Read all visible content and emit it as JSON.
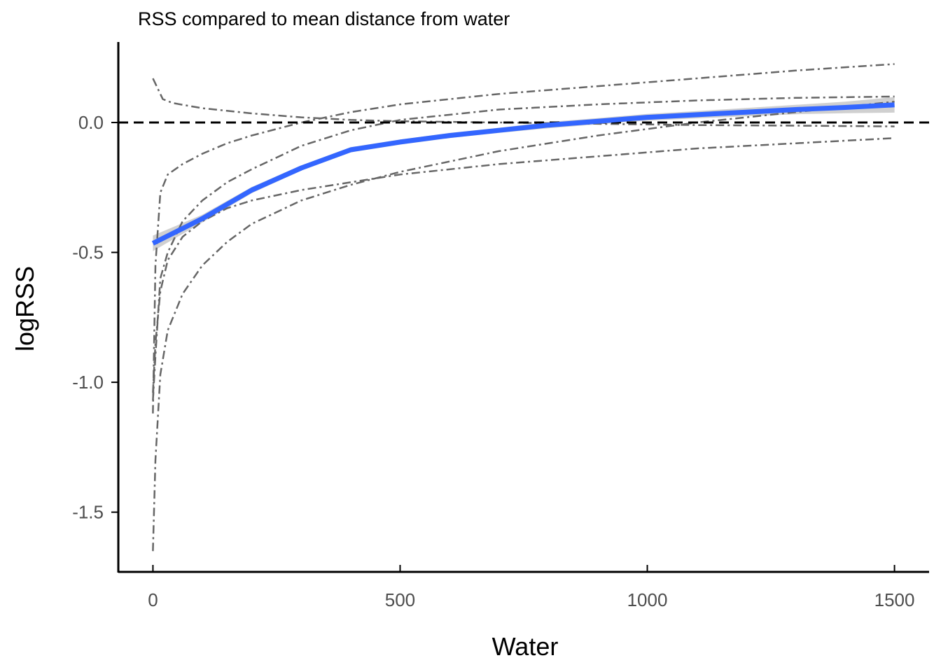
{
  "chart_data": {
    "type": "line",
    "title": "RSS compared to mean distance from water",
    "xlabel": "Water",
    "ylabel": "logRSS",
    "xlim": [
      -70,
      1570
    ],
    "ylim": [
      -1.73,
      0.31
    ],
    "x_ticks": [
      0,
      500,
      1000,
      1500
    ],
    "x_tick_labels": [
      "0",
      "500",
      "1000",
      "1500"
    ],
    "y_ticks": [
      0.0,
      -0.5,
      -1.0,
      -1.5
    ],
    "y_tick_labels": [
      "0.0",
      "-0.5",
      "-1.0",
      "-1.5"
    ],
    "grid": false,
    "reference_line": {
      "y": 0,
      "style": "dashed",
      "color": "#000000"
    },
    "colors": {
      "individual": "#666666",
      "smooth": "#3366ff",
      "band": "#c8c8c8",
      "axis": "#000000"
    },
    "series": [
      {
        "name": "individual-1",
        "style": "dashdot",
        "x": [
          0,
          20,
          40,
          100,
          200,
          300,
          400,
          500,
          700,
          900,
          1100,
          1300,
          1500
        ],
        "y": [
          0.17,
          0.09,
          0.075,
          0.055,
          0.035,
          0.02,
          0.01,
          0.005,
          0.0,
          -0.005,
          -0.01,
          -0.012,
          -0.015
        ]
      },
      {
        "name": "individual-2",
        "style": "dashdot",
        "x": [
          0,
          5,
          15,
          30,
          60,
          100,
          150,
          200,
          300,
          400,
          500,
          700,
          900,
          1100,
          1300,
          1500
        ],
        "y": [
          -1.12,
          -0.55,
          -0.27,
          -0.2,
          -0.16,
          -0.12,
          -0.08,
          -0.05,
          0.0,
          0.04,
          0.07,
          0.11,
          0.14,
          0.17,
          0.2,
          0.225
        ]
      },
      {
        "name": "individual-3",
        "style": "dashdot",
        "x": [
          0,
          5,
          15,
          30,
          60,
          100,
          150,
          200,
          300,
          400,
          500,
          700,
          900,
          1100,
          1300,
          1500
        ],
        "y": [
          -1.07,
          -0.9,
          -0.6,
          -0.5,
          -0.38,
          -0.3,
          -0.23,
          -0.18,
          -0.09,
          -0.03,
          0.01,
          0.05,
          0.07,
          0.085,
          0.095,
          0.1
        ]
      },
      {
        "name": "individual-4",
        "style": "dashdot",
        "x": [
          0,
          5,
          15,
          30,
          60,
          100,
          150,
          200,
          300,
          400,
          500,
          700,
          900,
          1100,
          1300,
          1500
        ],
        "y": [
          -1.04,
          -0.85,
          -0.65,
          -0.53,
          -0.44,
          -0.38,
          -0.33,
          -0.3,
          -0.26,
          -0.23,
          -0.2,
          -0.16,
          -0.13,
          -0.1,
          -0.08,
          -0.06
        ]
      },
      {
        "name": "individual-5",
        "style": "dashdot",
        "x": [
          0,
          5,
          15,
          30,
          60,
          100,
          150,
          200,
          300,
          400,
          500,
          700,
          900,
          1100,
          1300,
          1500
        ],
        "y": [
          -1.65,
          -1.3,
          -0.97,
          -0.8,
          -0.66,
          -0.55,
          -0.46,
          -0.39,
          -0.3,
          -0.24,
          -0.19,
          -0.11,
          -0.05,
          0.0,
          0.04,
          0.08
        ]
      },
      {
        "name": "smooth-mean",
        "style": "solid",
        "x": [
          0,
          100,
          200,
          300,
          400,
          500,
          600,
          700,
          800,
          900,
          1000,
          1100,
          1200,
          1300,
          1400,
          1500
        ],
        "y": [
          -0.465,
          -0.37,
          -0.26,
          -0.175,
          -0.105,
          -0.075,
          -0.05,
          -0.03,
          -0.01,
          0.005,
          0.02,
          0.03,
          0.04,
          0.05,
          0.058,
          0.068
        ],
        "band_halfwidth": [
          0.03,
          0.015,
          0.012,
          0.01,
          0.01,
          0.01,
          0.01,
          0.01,
          0.012,
          0.012,
          0.013,
          0.014,
          0.016,
          0.018,
          0.022,
          0.03
        ]
      }
    ]
  }
}
